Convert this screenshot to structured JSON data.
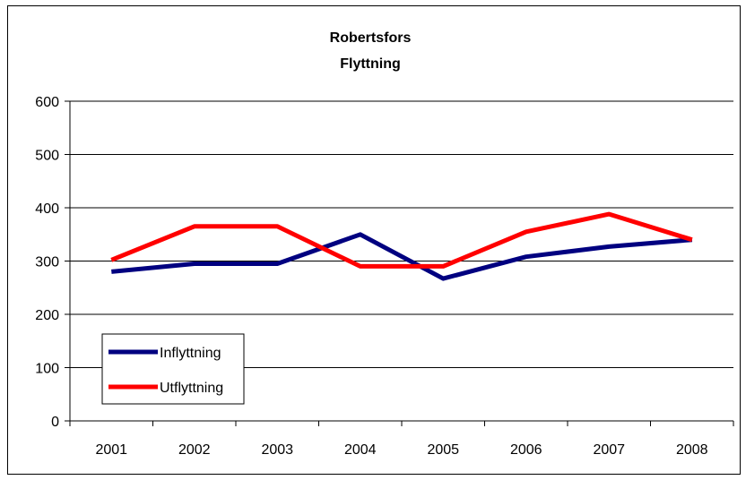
{
  "chart_data": {
    "type": "line",
    "title": "Robertsfors",
    "subtitle": "Flyttning",
    "categories": [
      "2001",
      "2002",
      "2003",
      "2004",
      "2005",
      "2006",
      "2007",
      "2008"
    ],
    "ylim": [
      0,
      600
    ],
    "yticks": [
      0,
      100,
      200,
      300,
      400,
      500,
      600
    ],
    "grid": true,
    "legend_position": "bottom-left",
    "series": [
      {
        "name": "Inflyttning",
        "color": "#000080",
        "values": [
          280,
          295,
          295,
          350,
          267,
          308,
          327,
          340
        ]
      },
      {
        "name": "Utflyttning",
        "color": "#ff0000",
        "values": [
          302,
          365,
          365,
          290,
          290,
          355,
          388,
          340
        ]
      }
    ]
  }
}
